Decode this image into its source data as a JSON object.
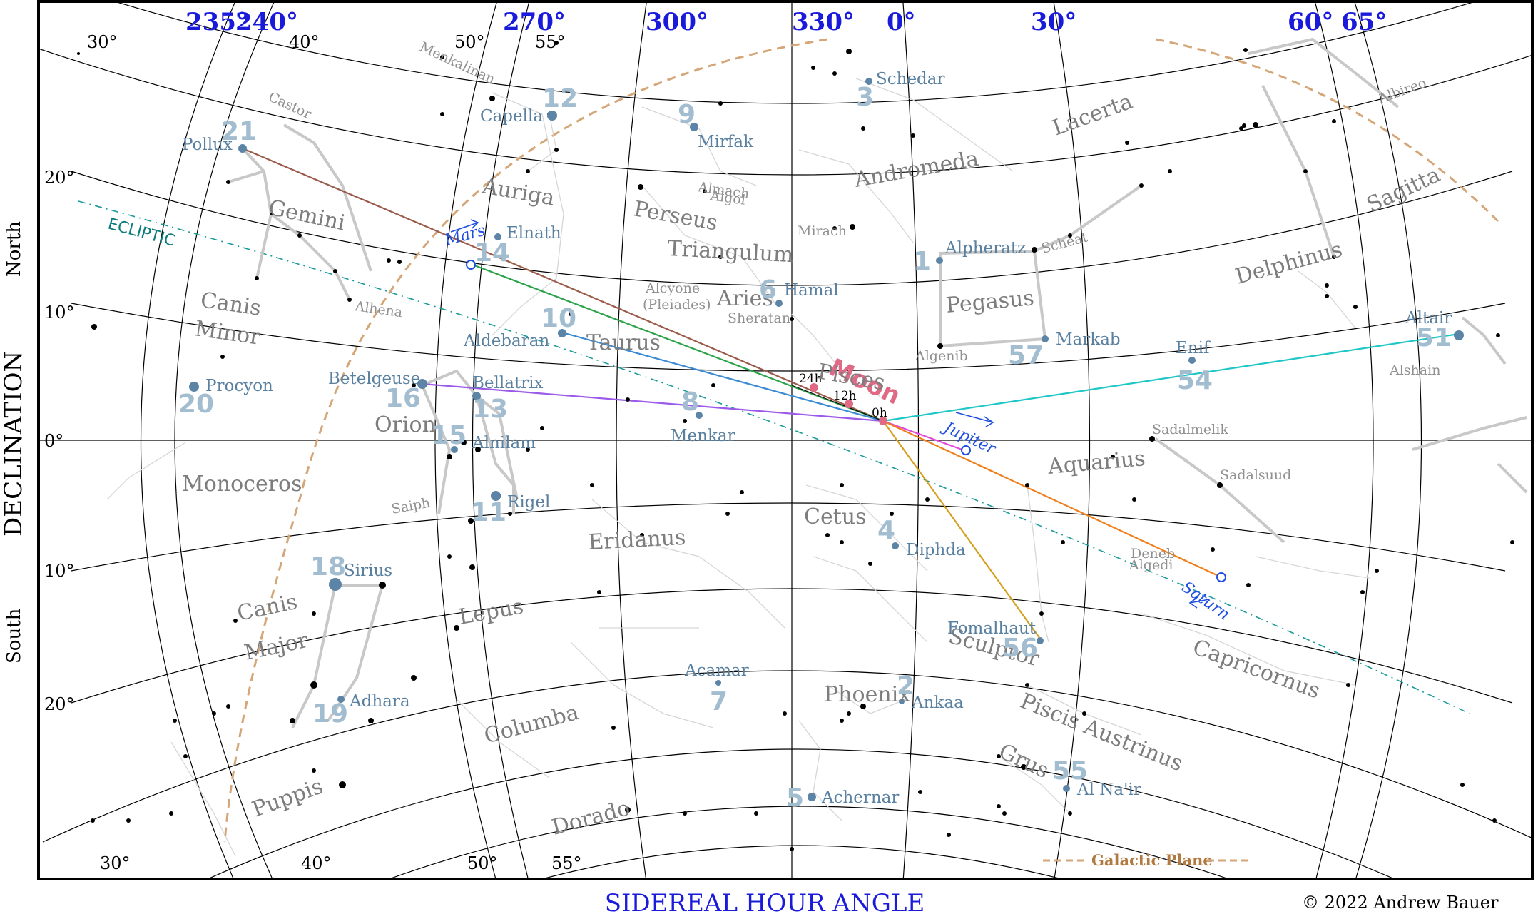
{
  "chart_data": {
    "type": "star-chart",
    "top_sha_labels": [
      "235°",
      "240°",
      "270°",
      "300°",
      "330°",
      "0°",
      "30°",
      "60°",
      "65°"
    ],
    "declination_labels_left": [
      "20°",
      "10°",
      "0°",
      "10°",
      "20°"
    ],
    "north_label": "North",
    "south_label": "South",
    "declination_title": "DECLINATION",
    "sha_title": "SIDEREAL HOUR ANGLE",
    "credit": "© 2022 Andrew Bauer",
    "lat_labels_top": [
      "30°",
      "40°",
      "50°",
      "55°"
    ],
    "lat_labels_bottom": [
      "30°",
      "40°",
      "50°",
      "55°"
    ],
    "ecliptic_label": "ECLIPTIC",
    "galactic_plane_label": "Galactic Plane",
    "moon": {
      "label": "Moon",
      "hours": [
        "24h",
        "12h",
        "0h"
      ]
    },
    "planets": [
      "Mars",
      "Jupiter",
      "Saturn"
    ],
    "constellations": [
      "Auriga",
      "Gemini",
      "Canis",
      "Minor",
      "Orion",
      "Monoceros",
      "Canis",
      "Major",
      "Lepus",
      "Puppis",
      "Columba",
      "Dorado",
      "Eridanus",
      "Taurus",
      "Perseus",
      "Triangulum",
      "Aries",
      "Andromeda",
      "Lacerta",
      "Pisces",
      "Cetus",
      "Phoenix",
      "Pegasus",
      "Delphinus",
      "Sagitta",
      "Aquarius",
      "Capricornus",
      "Sculptor",
      "Piscis Austrinus",
      "Grus"
    ],
    "stars": [
      {
        "name": "Pollux",
        "num": "21"
      },
      {
        "name": "Capella",
        "num": "12"
      },
      {
        "name": "Mirfak",
        "num": "9"
      },
      {
        "name": "Schedar",
        "num": "3"
      },
      {
        "name": "Elnath",
        "num": "14"
      },
      {
        "name": "Hamal",
        "num": "6"
      },
      {
        "name": "Alpheratz",
        "num": "1"
      },
      {
        "name": "Aldebaran",
        "num": "10"
      },
      {
        "name": "Procyon",
        "num": "20"
      },
      {
        "name": "Betelgeuse",
        "num": "16"
      },
      {
        "name": "Bellatrix",
        "num": "13"
      },
      {
        "name": "Alnilam",
        "num": "15"
      },
      {
        "name": "Rigel",
        "num": "11"
      },
      {
        "name": "Menkar",
        "num": "8"
      },
      {
        "name": "Markab",
        "num": "57"
      },
      {
        "name": "Enif",
        "num": "54"
      },
      {
        "name": "Altair",
        "num": "51"
      },
      {
        "name": "Diphda",
        "num": "4"
      },
      {
        "name": "Sirius",
        "num": "18"
      },
      {
        "name": "Adhara",
        "num": "19"
      },
      {
        "name": "Fomalhaut",
        "num": "56"
      },
      {
        "name": "Acamar",
        "num": "7"
      },
      {
        "name": "Ankaa",
        "num": "2"
      },
      {
        "name": "Achernar",
        "num": "5"
      },
      {
        "name": "Al Na'ir",
        "num": "55"
      }
    ],
    "minor_names": [
      "Menkalinan",
      "Castor",
      "Almach",
      "Algol",
      "Mirach",
      "Alhena",
      "Alcyone",
      "(Pleiades)",
      "Sheratan",
      "Scheat",
      "Algenib",
      "Saiph",
      "Alshain",
      "Sadalmelik",
      "Sadalsuud",
      "Deneb",
      "Algedi",
      "Albireo"
    ]
  }
}
